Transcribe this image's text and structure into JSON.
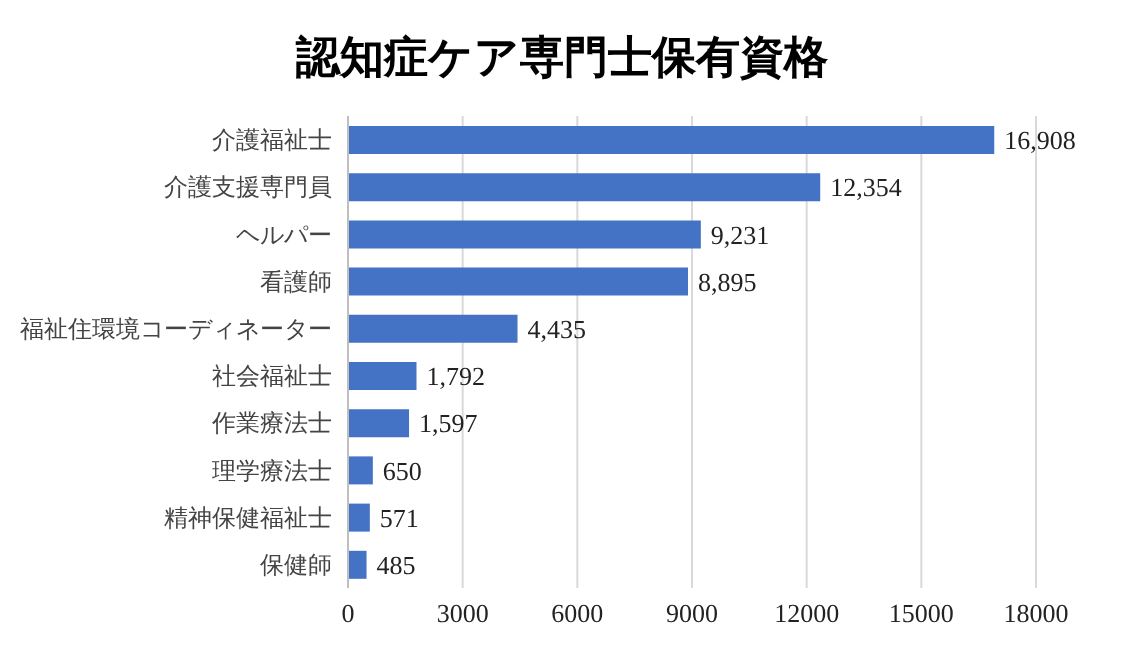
{
  "chart_data": {
    "type": "bar",
    "orientation": "horizontal",
    "title": "認知症ケア専門士保有資格",
    "categories": [
      "介護福祉士",
      "介護支援専門員",
      "ヘルパー",
      "看護師",
      "福祉住環境コーディネーター",
      "社会福祉士",
      "作業療法士",
      "理学療法士",
      "精神保健福祉士",
      "保健師"
    ],
    "values": [
      16908,
      12354,
      9231,
      8895,
      4435,
      1792,
      1597,
      650,
      571,
      485
    ],
    "value_labels": [
      "16,908",
      "12,354",
      "9,231",
      "8,895",
      "4,435",
      "1,792",
      "1,597",
      "650",
      "571",
      "485"
    ],
    "color": "#4472c4",
    "xlim": [
      0,
      18000
    ],
    "xticks": [
      0,
      3000,
      6000,
      9000,
      12000,
      15000,
      18000
    ],
    "grid": "x",
    "legend": false
  }
}
